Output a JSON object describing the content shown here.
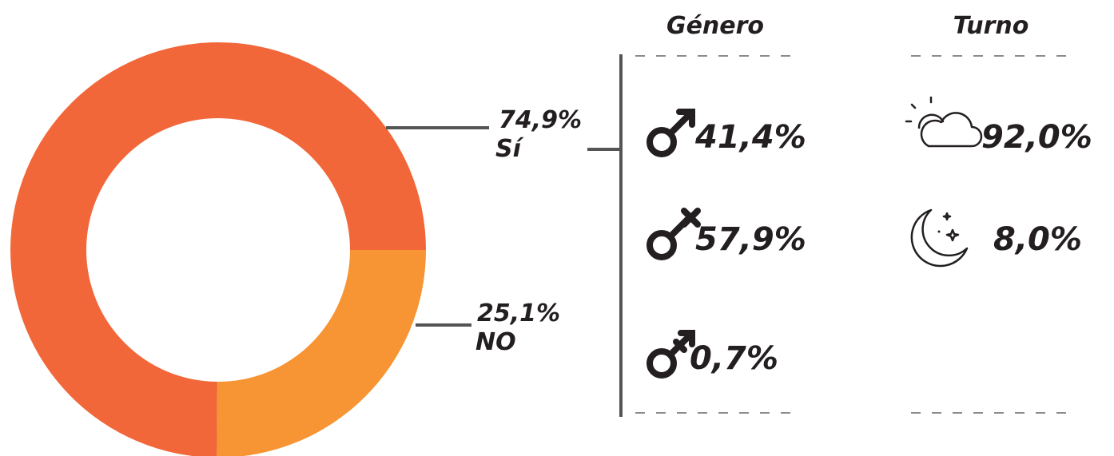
{
  "chart_data": {
    "type": "pie",
    "donut": true,
    "categories": [
      "Sí",
      "NO"
    ],
    "values": [
      74.9,
      25.1
    ],
    "value_labels": [
      "74,9%",
      "25,1%"
    ],
    "colors": [
      "#f26739",
      "#f79433"
    ]
  },
  "genero": {
    "title": "Género",
    "values": [
      "41,4%",
      "57,9%",
      "0,7%"
    ]
  },
  "turno": {
    "title": "Turno",
    "values": [
      "92,0%",
      "8,0%"
    ]
  }
}
